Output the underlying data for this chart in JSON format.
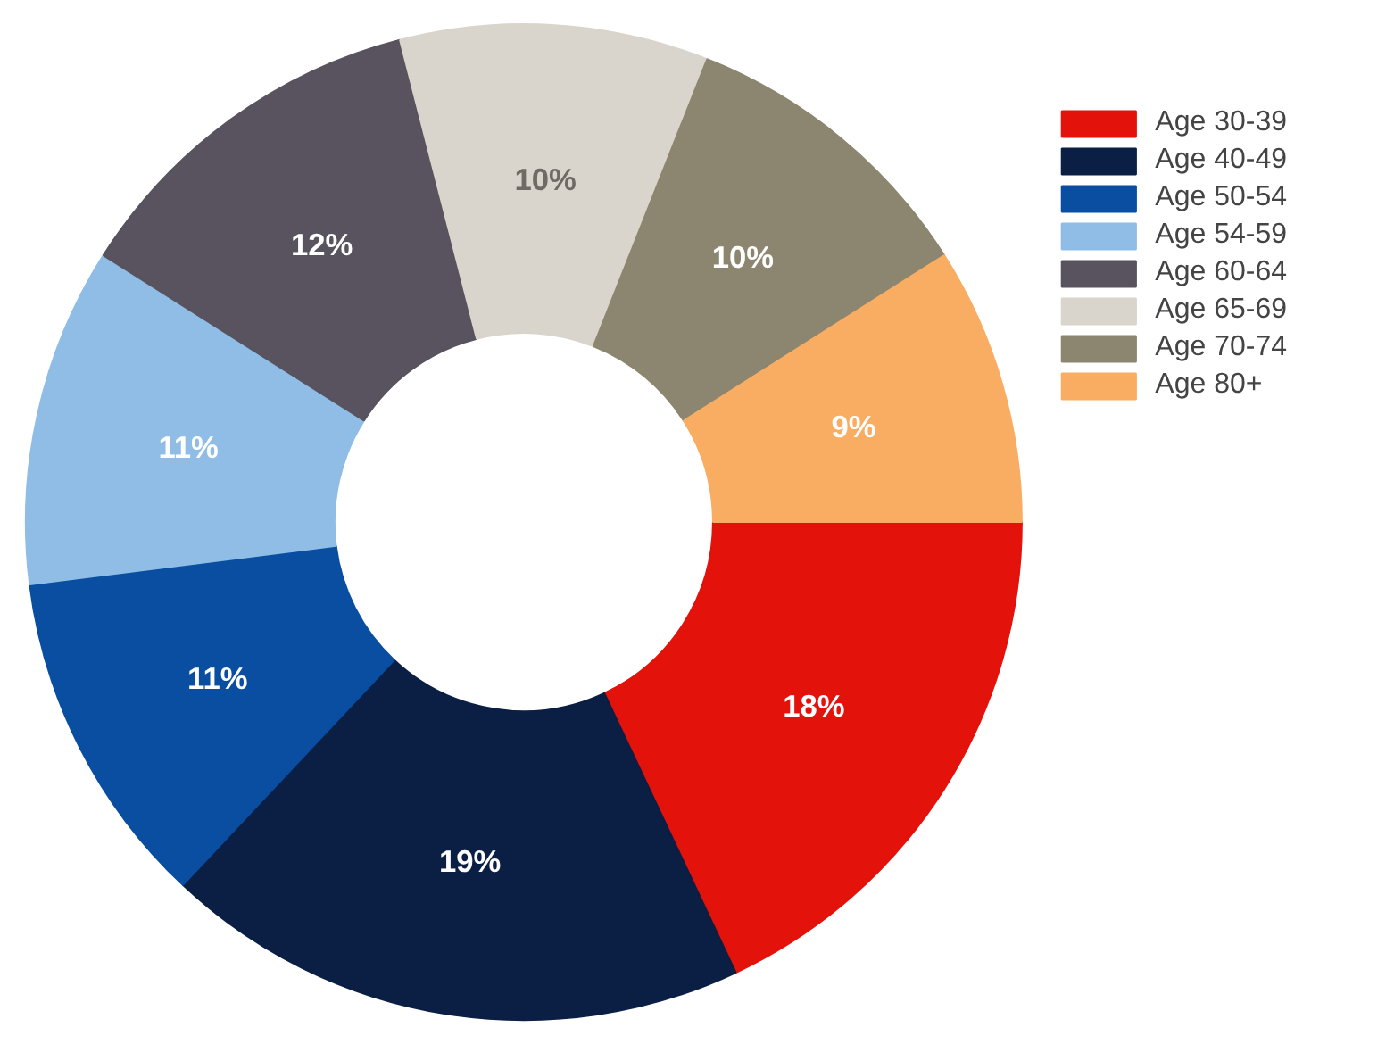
{
  "chart_data": {
    "type": "donut",
    "categories": [
      "Age 30-39",
      "Age 40-49",
      "Age 50-54",
      "Age 54-59",
      "Age 60-64",
      "Age 65-69",
      "Age 70-74",
      "Age 80+"
    ],
    "values": [
      18,
      19,
      11,
      11,
      12,
      10,
      10,
      9
    ],
    "colors": [
      "#e3120b",
      "#0b1f44",
      "#0a4ea2",
      "#8fbde6",
      "#58535e",
      "#d9d4cc",
      "#8c8670",
      "#f9ad63"
    ],
    "value_labels": [
      "18%",
      "19%",
      "11%",
      "11%",
      "12%",
      "10%",
      "10%",
      "9%"
    ],
    "legend": "right"
  }
}
